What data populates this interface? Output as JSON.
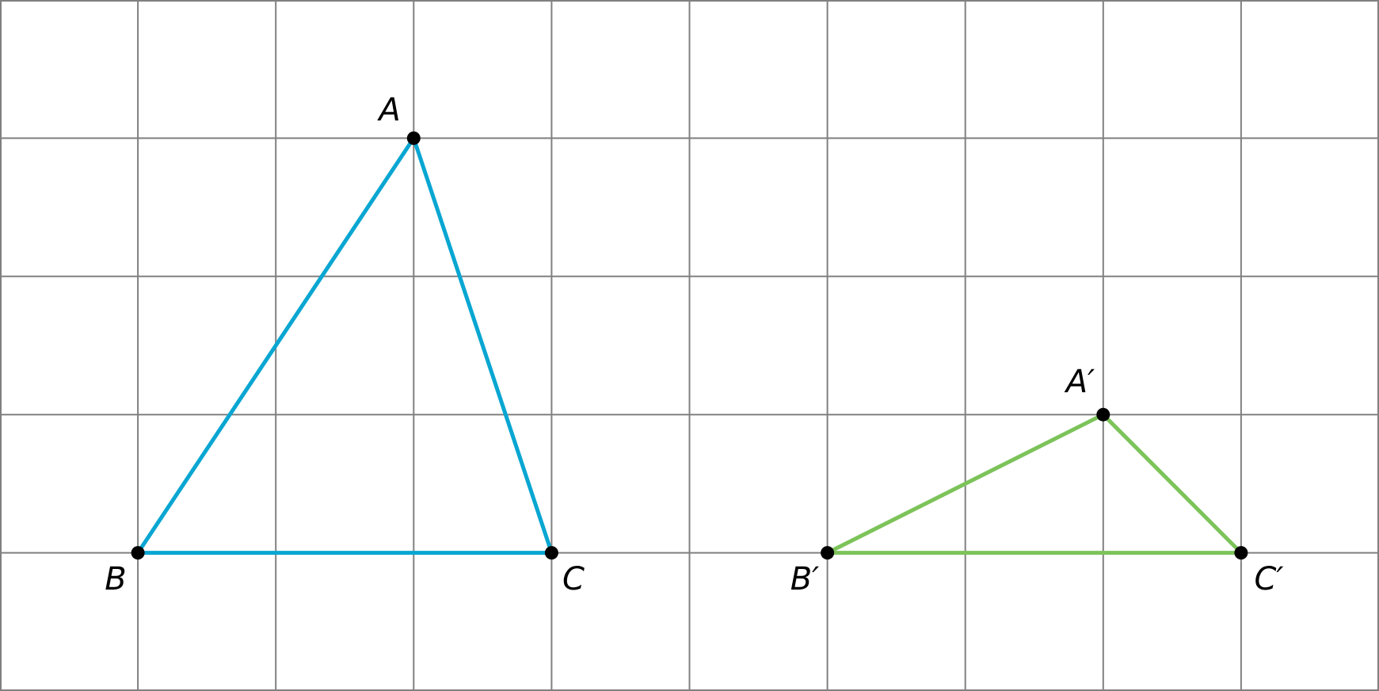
{
  "triangles": [
    {
      "vertices": [
        {
          "label": "A"
        },
        {
          "label": "B"
        },
        {
          "label": "C"
        }
      ]
    },
    {
      "vertices": [
        {
          "label": "A′"
        },
        {
          "label": "B′"
        },
        {
          "label": "C′"
        }
      ]
    }
  ]
}
